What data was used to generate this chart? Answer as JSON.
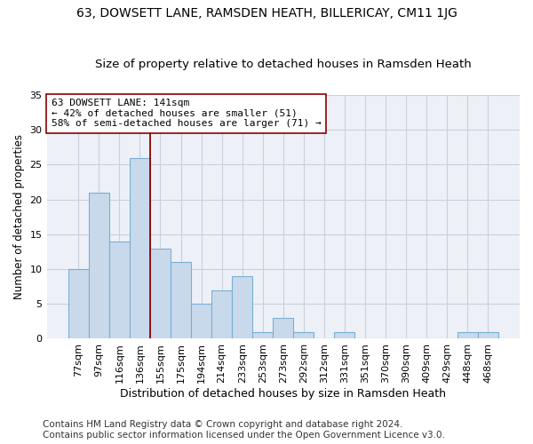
{
  "title1": "63, DOWSETT LANE, RAMSDEN HEATH, BILLERICAY, CM11 1JG",
  "title2": "Size of property relative to detached houses in Ramsden Heath",
  "xlabel": "Distribution of detached houses by size in Ramsden Heath",
  "ylabel": "Number of detached properties",
  "categories": [
    "77sqm",
    "97sqm",
    "116sqm",
    "136sqm",
    "155sqm",
    "175sqm",
    "194sqm",
    "214sqm",
    "233sqm",
    "253sqm",
    "273sqm",
    "292sqm",
    "312sqm",
    "331sqm",
    "351sqm",
    "370sqm",
    "390sqm",
    "409sqm",
    "429sqm",
    "448sqm",
    "468sqm"
  ],
  "values": [
    10,
    21,
    14,
    26,
    13,
    11,
    5,
    7,
    9,
    1,
    3,
    1,
    0,
    1,
    0,
    0,
    0,
    0,
    0,
    1,
    1
  ],
  "bar_color": "#c9d9ec",
  "bar_edge_color": "#7aafd4",
  "bar_edge_width": 0.8,
  "vline_x": 3.5,
  "vline_color": "#8b0000",
  "annotation_line1": "63 DOWSETT LANE: 141sqm",
  "annotation_line2": "← 42% of detached houses are smaller (51)",
  "annotation_line3": "58% of semi-detached houses are larger (71) →",
  "annotation_box_edge_color": "#8b0000",
  "annotation_box_face_color": "white",
  "ylim": [
    0,
    35
  ],
  "yticks": [
    0,
    5,
    10,
    15,
    20,
    25,
    30,
    35
  ],
  "ytick_labels": [
    "0",
    "5",
    "10",
    "15",
    "20",
    "25",
    "30",
    "35"
  ],
  "grid_color": "#c8d0de",
  "background_color": "#edf1f7",
  "footer_line1": "Contains HM Land Registry data © Crown copyright and database right 2024.",
  "footer_line2": "Contains public sector information licensed under the Open Government Licence v3.0.",
  "title1_fontsize": 10,
  "title2_fontsize": 9.5,
  "xlabel_fontsize": 9,
  "ylabel_fontsize": 8.5,
  "tick_fontsize": 8,
  "annotation_fontsize": 8,
  "footer_fontsize": 7.5
}
